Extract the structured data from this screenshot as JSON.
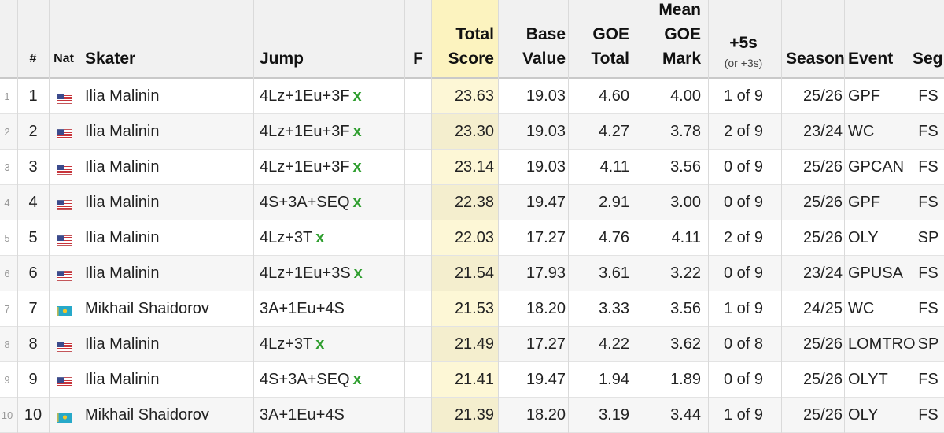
{
  "columns": {
    "rank": "#",
    "nat": "Nat",
    "skater": "Skater",
    "jump": "Jump",
    "f": "F",
    "total": [
      "Total",
      "Score"
    ],
    "base": [
      "Base",
      "Value"
    ],
    "goe": [
      "GOE",
      "Total"
    ],
    "mean": [
      "Mean",
      "GOE",
      "Mark"
    ],
    "plus5": "+5s",
    "plus5_sub": "(or +3s)",
    "season": "Season",
    "event": "Event",
    "seg": "Seg"
  },
  "check_mark": "x",
  "colors": {
    "highlight": "#fdf7d6",
    "check": "#2f9e2f"
  },
  "rows": [
    {
      "idx": "1",
      "rank": "1",
      "nat": "usa-flag-icon",
      "skater": "Ilia Malinin",
      "jump": "4Lz+1Eu+3F",
      "x": true,
      "total": "23.63",
      "base": "19.03",
      "goe": "4.60",
      "mean": "4.00",
      "plus5": "1 of 9",
      "season": "25/26",
      "event": "GPF",
      "seg": "FS"
    },
    {
      "idx": "2",
      "rank": "2",
      "nat": "usa-flag-icon",
      "skater": "Ilia Malinin",
      "jump": "4Lz+1Eu+3F",
      "x": true,
      "total": "23.30",
      "base": "19.03",
      "goe": "4.27",
      "mean": "3.78",
      "plus5": "2 of 9",
      "season": "23/24",
      "event": "WC",
      "seg": "FS"
    },
    {
      "idx": "3",
      "rank": "3",
      "nat": "usa-flag-icon",
      "skater": "Ilia Malinin",
      "jump": "4Lz+1Eu+3F",
      "x": true,
      "total": "23.14",
      "base": "19.03",
      "goe": "4.11",
      "mean": "3.56",
      "plus5": "0 of 9",
      "season": "25/26",
      "event": "GPCAN",
      "seg": "FS"
    },
    {
      "idx": "4",
      "rank": "4",
      "nat": "usa-flag-icon",
      "skater": "Ilia Malinin",
      "jump": "4S+3A+SEQ",
      "x": true,
      "total": "22.38",
      "base": "19.47",
      "goe": "2.91",
      "mean": "3.00",
      "plus5": "0 of 9",
      "season": "25/26",
      "event": "GPF",
      "seg": "FS"
    },
    {
      "idx": "5",
      "rank": "5",
      "nat": "usa-flag-icon",
      "skater": "Ilia Malinin",
      "jump": "4Lz+3T",
      "x": true,
      "total": "22.03",
      "base": "17.27",
      "goe": "4.76",
      "mean": "4.11",
      "plus5": "2 of 9",
      "season": "25/26",
      "event": "OLY",
      "seg": "SP"
    },
    {
      "idx": "6",
      "rank": "6",
      "nat": "usa-flag-icon",
      "skater": "Ilia Malinin",
      "jump": "4Lz+1Eu+3S",
      "x": true,
      "total": "21.54",
      "base": "17.93",
      "goe": "3.61",
      "mean": "3.22",
      "plus5": "0 of 9",
      "season": "23/24",
      "event": "GPUSA",
      "seg": "FS"
    },
    {
      "idx": "7",
      "rank": "7",
      "nat": "kaz-flag-icon",
      "skater": "Mikhail Shaidorov",
      "jump": "3A+1Eu+4S",
      "x": false,
      "total": "21.53",
      "base": "18.20",
      "goe": "3.33",
      "mean": "3.56",
      "plus5": "1 of 9",
      "season": "24/25",
      "event": "WC",
      "seg": "FS"
    },
    {
      "idx": "8",
      "rank": "8",
      "nat": "usa-flag-icon",
      "skater": "Ilia Malinin",
      "jump": "4Lz+3T",
      "x": true,
      "total": "21.49",
      "base": "17.27",
      "goe": "4.22",
      "mean": "3.62",
      "plus5": "0 of 8",
      "season": "25/26",
      "event": "LOMTRO",
      "seg": "SP"
    },
    {
      "idx": "9",
      "rank": "9",
      "nat": "usa-flag-icon",
      "skater": "Ilia Malinin",
      "jump": "4S+3A+SEQ",
      "x": true,
      "total": "21.41",
      "base": "19.47",
      "goe": "1.94",
      "mean": "1.89",
      "plus5": "0 of 9",
      "season": "25/26",
      "event": "OLYT",
      "seg": "FS"
    },
    {
      "idx": "10",
      "rank": "10",
      "nat": "kaz-flag-icon",
      "skater": "Mikhail Shaidorov",
      "jump": "3A+1Eu+4S",
      "x": false,
      "total": "21.39",
      "base": "18.20",
      "goe": "3.19",
      "mean": "3.44",
      "plus5": "1 of 9",
      "season": "25/26",
      "event": "OLY",
      "seg": "FS"
    }
  ]
}
